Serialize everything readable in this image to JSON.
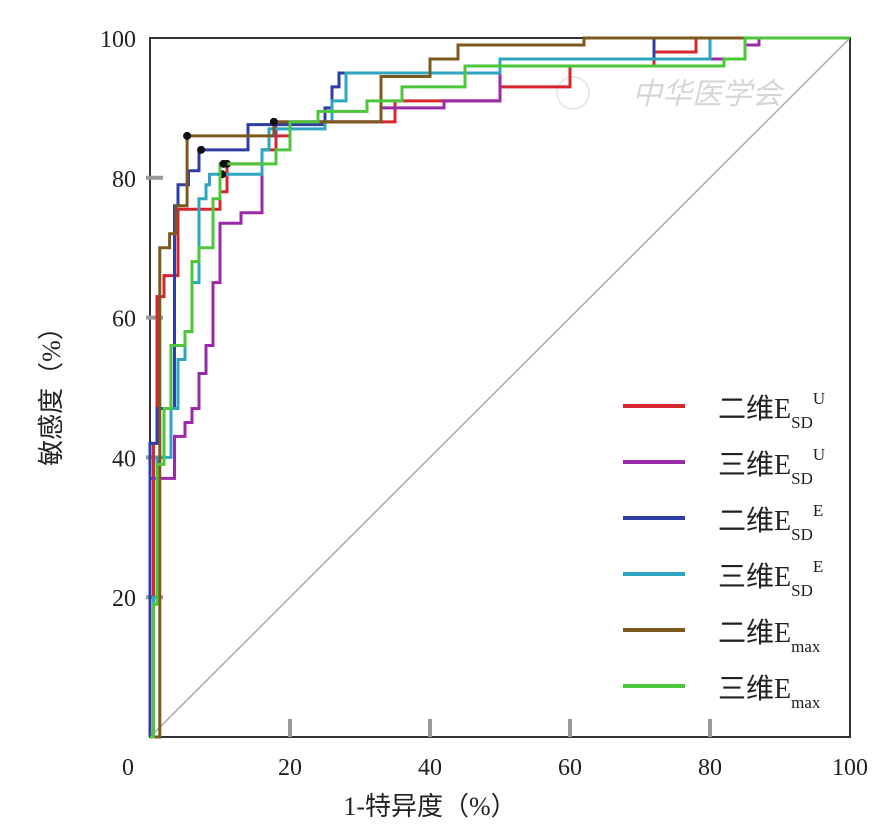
{
  "chart_data": {
    "type": "line",
    "title": "",
    "xlabel": "1-特异度（%）",
    "ylabel": "敏感度（%）",
    "xlim": [
      0,
      100
    ],
    "ylim": [
      0,
      100
    ],
    "xticks": [
      "0",
      "20",
      "40",
      "60",
      "80",
      "100"
    ],
    "yticks": [
      "20",
      "40",
      "60",
      "80",
      "100"
    ],
    "grid": false,
    "legend_position": "bottom-right",
    "reference_line": {
      "x": [
        0,
        100
      ],
      "y": [
        0,
        100
      ],
      "color": "#aaaaaa"
    },
    "series": [
      {
        "name": "二维E",
        "sub": "SD",
        "sup": "U",
        "color": "#d8262e",
        "x": [
          0,
          0.5,
          0.5,
          1,
          2,
          4,
          7.6,
          10,
          11,
          16,
          18,
          20,
          25,
          35,
          43,
          50,
          60,
          72,
          78,
          100
        ],
        "y": [
          0,
          35,
          42,
          63,
          66,
          75.5,
          75.5,
          78,
          82,
          84,
          86,
          88,
          88,
          91,
          91,
          93,
          96,
          98,
          100,
          100
        ],
        "markers": [
          [
            11,
            82
          ]
        ]
      },
      {
        "name": "三维E",
        "sub": "SD",
        "sup": "U",
        "color": "#9b2aa8",
        "x": [
          0,
          0,
          3.5,
          5,
          6,
          7,
          8,
          9,
          10,
          13,
          16,
          17,
          18,
          25,
          33,
          42,
          50,
          85,
          87,
          100
        ],
        "y": [
          0,
          37,
          43,
          45,
          47,
          52,
          56,
          65,
          73.5,
          75,
          84,
          86,
          88,
          88,
          90,
          91,
          97,
          99,
          100,
          100
        ],
        "markers": [
          [
            17.7,
            88
          ]
        ]
      },
      {
        "name": "二维E",
        "sub": "SD",
        "sup": "E",
        "color": "#2e3ea6",
        "x": [
          0,
          0,
          1,
          3.5,
          4,
          5.5,
          7,
          14,
          25,
          26,
          27,
          50,
          72,
          100
        ],
        "y": [
          0,
          42,
          47,
          76,
          79,
          81,
          84,
          87.6,
          90,
          93,
          95,
          97,
          100,
          100
        ],
        "markers": [
          [
            7.3,
            84
          ]
        ]
      },
      {
        "name": "三维E",
        "sub": "SD",
        "sup": "E",
        "color": "#2fa6c0",
        "x": [
          0,
          0.5,
          1,
          3,
          4,
          5,
          6,
          7,
          8,
          8.5,
          16,
          17,
          25,
          26,
          28,
          40,
          50,
          80,
          100
        ],
        "y": [
          0,
          20,
          40,
          47,
          54,
          58,
          65,
          77,
          79,
          80.5,
          84,
          87,
          88,
          91,
          95,
          95,
          97,
          100,
          100
        ],
        "markers": [
          [
            10.3,
            80.5
          ]
        ]
      },
      {
        "name": "二维E",
        "sub": "max",
        "sup": "",
        "color": "#7c5a1e",
        "x": [
          0,
          1.4,
          1.4,
          2.8,
          3.7,
          5.3,
          17.7,
          25,
          33,
          40,
          44,
          62,
          100
        ],
        "y": [
          0,
          47,
          70,
          72,
          76,
          86,
          88,
          88,
          94.5,
          97,
          99,
          100,
          100
        ],
        "markers": [
          [
            5.3,
            86
          ],
          [
            17.7,
            88
          ]
        ]
      },
      {
        "name": "三维E",
        "sub": "max",
        "sup": "",
        "color": "#4cc63a",
        "x": [
          0,
          0.5,
          1,
          2,
          3,
          5,
          6,
          7,
          9,
          10,
          16,
          18,
          20,
          24,
          31,
          36,
          45,
          82,
          85,
          100
        ],
        "y": [
          0,
          19,
          39,
          47,
          56,
          58,
          68,
          70,
          77,
          82,
          82,
          84,
          88,
          89.5,
          91,
          93,
          96,
          97,
          100,
          100
        ],
        "markers": [
          [
            10.5,
            82
          ]
        ]
      }
    ]
  },
  "watermark": "中华医学会"
}
